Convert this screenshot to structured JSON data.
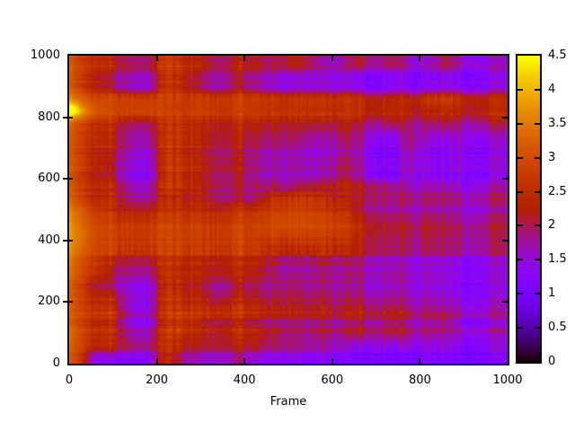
{
  "figure": {
    "background": "#ffffff",
    "text_color": "#000000",
    "border_color": "#000000"
  },
  "chart_data": {
    "type": "heatmap",
    "title": "",
    "xlabel": "Frame",
    "ylabel": "",
    "x_range": [
      0,
      1000
    ],
    "y_range": [
      0,
      1000
    ],
    "x_ticks": [
      0,
      200,
      400,
      600,
      800,
      1000
    ],
    "y_ticks": [
      0,
      200,
      400,
      600,
      800,
      1000
    ],
    "colorbar": {
      "min": 0,
      "max": 4.5,
      "ticks": [
        0,
        0.5,
        1,
        1.5,
        2,
        2.5,
        3,
        3.5,
        4,
        4.5
      ],
      "palette": "gnuplot rgbformulae 7,5,15 (black-violet-magenta-red-orange-yellow)",
      "palette_stops": [
        {
          "v": 0.0,
          "hex": "#000000"
        },
        {
          "v": 1.125,
          "hex": "#8404fe"
        },
        {
          "v": 2.25,
          "hex": "#b42000"
        },
        {
          "v": 3.375,
          "hex": "#dd6c00"
        },
        {
          "v": 4.5,
          "hex": "#ffff00"
        }
      ]
    },
    "grid_cell_size": 40,
    "grid_rows_bottom_to_top": true,
    "values": [
      [
        2.8,
        1.4,
        1.3,
        1.3,
        1.3,
        2.4,
        1.8,
        1.6,
        1.5,
        1.8,
        1.5,
        1.3,
        1.4,
        1.2,
        1.3,
        1.2,
        1.1,
        1.2,
        1.1,
        1.1,
        1.2,
        1.1,
        1.1,
        1.1,
        1.2
      ],
      [
        3.0,
        2.5,
        2.4,
        2.0,
        1.9,
        2.6,
        2.3,
        2.2,
        2.1,
        2.3,
        2.2,
        1.9,
        2.0,
        1.7,
        1.8,
        1.6,
        1.5,
        1.7,
        1.5,
        1.6,
        1.4,
        1.5,
        1.3,
        1.3,
        1.4
      ],
      [
        3.0,
        2.4,
        2.3,
        1.6,
        1.5,
        2.6,
        2.4,
        2.2,
        2.0,
        2.4,
        2.2,
        2.0,
        1.8,
        1.6,
        1.9,
        1.7,
        2.1,
        1.9,
        2.1,
        1.8,
        1.7,
        1.6,
        1.5,
        1.4,
        1.5
      ],
      [
        2.9,
        2.5,
        2.4,
        1.5,
        1.4,
        2.6,
        2.6,
        2.4,
        2.1,
        2.4,
        2.1,
        1.9,
        2.0,
        1.8,
        2.0,
        1.8,
        2.2,
        2.0,
        2.2,
        1.9,
        1.8,
        1.9,
        1.5,
        1.4,
        1.5
      ],
      [
        2.9,
        2.6,
        2.4,
        1.5,
        1.4,
        2.6,
        2.5,
        2.5,
        2.3,
        2.6,
        2.4,
        2.2,
        2.3,
        2.0,
        2.2,
        2.0,
        2.3,
        2.1,
        2.2,
        1.9,
        1.8,
        1.7,
        1.6,
        1.5,
        1.6
      ],
      [
        2.9,
        2.4,
        2.2,
        1.5,
        1.4,
        2.6,
        2.4,
        2.3,
        1.8,
        2.3,
        2.1,
        1.9,
        2.1,
        1.8,
        2.0,
        1.8,
        2.0,
        1.8,
        1.9,
        1.7,
        1.6,
        1.5,
        1.4,
        1.3,
        1.4
      ],
      [
        2.9,
        2.2,
        1.8,
        1.5,
        1.4,
        2.5,
        2.3,
        2.2,
        1.7,
        2.2,
        2.0,
        1.8,
        2.0,
        1.7,
        1.9,
        1.7,
        1.9,
        1.7,
        1.8,
        1.6,
        1.5,
        1.4,
        1.3,
        1.3,
        1.4
      ],
      [
        3.1,
        2.7,
        2.1,
        1.9,
        1.9,
        2.6,
        2.4,
        2.4,
        2.2,
        2.5,
        2.3,
        2.0,
        1.8,
        1.7,
        2.0,
        1.8,
        2.0,
        1.8,
        1.9,
        1.7,
        1.6,
        1.5,
        1.4,
        1.4,
        1.5
      ],
      [
        3.2,
        2.8,
        2.4,
        2.2,
        2.2,
        2.7,
        2.5,
        2.5,
        2.3,
        2.6,
        2.4,
        2.2,
        2.0,
        1.9,
        2.2,
        2.0,
        2.1,
        1.9,
        1.8,
        1.7,
        1.6,
        1.6,
        1.5,
        1.5,
        1.6
      ],
      [
        3.4,
        2.9,
        2.7,
        2.6,
        2.6,
        2.8,
        2.7,
        2.7,
        2.5,
        2.8,
        2.6,
        2.4,
        2.4,
        2.3,
        2.5,
        2.3,
        2.3,
        2.1,
        2.0,
        1.9,
        1.9,
        1.8,
        1.8,
        1.7,
        1.8
      ],
      [
        3.5,
        3.0,
        2.8,
        2.7,
        2.7,
        2.9,
        2.8,
        2.8,
        2.6,
        2.9,
        2.7,
        2.8,
        2.8,
        2.7,
        2.8,
        2.6,
        2.4,
        2.2,
        2.1,
        2.0,
        2.0,
        1.9,
        1.9,
        1.8,
        1.9
      ],
      [
        3.4,
        2.9,
        2.7,
        2.6,
        2.6,
        2.8,
        2.7,
        2.7,
        2.5,
        2.8,
        2.7,
        2.9,
        3.0,
        2.9,
        2.9,
        2.7,
        2.4,
        2.2,
        2.1,
        2.0,
        2.0,
        1.9,
        1.8,
        1.8,
        1.9
      ],
      [
        3.3,
        2.8,
        2.6,
        2.4,
        2.4,
        2.7,
        2.6,
        2.6,
        2.4,
        2.7,
        2.6,
        2.8,
        2.9,
        2.8,
        2.8,
        2.6,
        2.3,
        2.1,
        2.0,
        1.9,
        1.9,
        1.8,
        1.8,
        1.7,
        1.8
      ],
      [
        2.9,
        2.4,
        2.3,
        1.8,
        1.7,
        2.4,
        2.2,
        2.3,
        1.8,
        2.0,
        1.8,
        2.4,
        2.6,
        2.5,
        2.4,
        2.2,
        2.2,
        2.1,
        2.0,
        2.0,
        1.9,
        1.9,
        1.8,
        1.8,
        1.9
      ],
      [
        2.8,
        2.4,
        2.2,
        1.6,
        1.5,
        2.6,
        2.4,
        2.2,
        1.8,
        2.0,
        1.8,
        1.8,
        1.7,
        1.8,
        2.0,
        2.2,
        2.2,
        2.0,
        1.8,
        1.6,
        1.5,
        1.5,
        1.4,
        1.4,
        1.5
      ],
      [
        2.8,
        2.3,
        2.0,
        1.4,
        1.3,
        2.6,
        2.5,
        2.3,
        1.9,
        2.2,
        1.8,
        1.6,
        1.7,
        1.5,
        1.6,
        1.9,
        1.8,
        1.3,
        1.2,
        1.7,
        1.3,
        1.2,
        1.4,
        1.2,
        1.3
      ],
      [
        2.8,
        2.3,
        1.9,
        1.4,
        1.3,
        2.5,
        2.4,
        2.2,
        1.8,
        2.1,
        1.7,
        1.5,
        1.6,
        1.4,
        1.5,
        1.8,
        1.7,
        1.3,
        1.2,
        1.6,
        1.2,
        1.2,
        1.4,
        1.2,
        1.3
      ],
      [
        2.8,
        2.4,
        2.2,
        1.7,
        1.6,
        2.6,
        2.4,
        2.3,
        1.9,
        2.2,
        1.9,
        1.7,
        1.8,
        1.5,
        1.5,
        1.7,
        1.8,
        1.3,
        1.3,
        1.9,
        1.3,
        1.2,
        1.5,
        1.2,
        1.3
      ],
      [
        2.8,
        2.4,
        2.1,
        1.6,
        1.6,
        2.5,
        2.4,
        2.2,
        1.9,
        2.2,
        1.9,
        1.8,
        1.9,
        1.6,
        1.6,
        1.8,
        1.8,
        1.4,
        1.3,
        1.9,
        1.4,
        1.3,
        1.5,
        1.3,
        1.4
      ],
      [
        3.0,
        2.6,
        2.4,
        2.0,
        2.0,
        2.6,
        2.5,
        2.4,
        2.2,
        2.4,
        2.3,
        2.2,
        2.2,
        2.1,
        2.1,
        2.2,
        2.2,
        2.0,
        2.2,
        2.0,
        1.9,
        2.0,
        1.9,
        1.9,
        2.0
      ],
      [
        4.0,
        3.2,
        3.0,
        2.9,
        3.0,
        2.9,
        2.8,
        2.9,
        2.7,
        2.9,
        2.8,
        2.7,
        2.7,
        2.6,
        2.7,
        2.6,
        2.7,
        2.5,
        2.6,
        2.4,
        2.4,
        2.5,
        2.4,
        2.4,
        2.5
      ],
      [
        3.3,
        2.9,
        2.8,
        2.7,
        2.7,
        2.7,
        2.6,
        2.7,
        2.5,
        2.7,
        2.6,
        2.5,
        2.5,
        2.4,
        2.5,
        2.4,
        2.5,
        2.3,
        2.4,
        2.3,
        2.5,
        2.6,
        2.4,
        2.2,
        2.3
      ],
      [
        2.8,
        2.3,
        1.9,
        1.6,
        1.5,
        2.6,
        2.3,
        2.0,
        1.6,
        2.1,
        1.8,
        1.5,
        1.4,
        1.4,
        1.5,
        1.4,
        1.4,
        1.3,
        1.4,
        1.3,
        1.3,
        1.4,
        1.3,
        1.3,
        1.4
      ],
      [
        2.9,
        2.4,
        2.0,
        1.8,
        1.7,
        2.7,
        2.4,
        2.1,
        1.7,
        2.2,
        1.9,
        1.7,
        1.6,
        1.5,
        1.6,
        1.5,
        1.5,
        1.4,
        1.5,
        1.4,
        1.3,
        1.4,
        1.3,
        1.3,
        1.4
      ],
      [
        2.8,
        2.5,
        2.2,
        1.9,
        1.9,
        2.7,
        2.4,
        2.3,
        1.8,
        2.2,
        2.1,
        1.9,
        2.2,
        2.0,
        1.6,
        1.6,
        2.2,
        1.9,
        2.1,
        1.6,
        1.5,
        2.0,
        1.6,
        1.4,
        1.5
      ]
    ],
    "features": {
      "left_edge_hot_stripe": {
        "width": 7,
        "boost": 0.5
      },
      "hot_spot": {
        "x": 8,
        "y": 828,
        "sx": 10,
        "sy": 16,
        "boost": 0.6
      }
    }
  }
}
